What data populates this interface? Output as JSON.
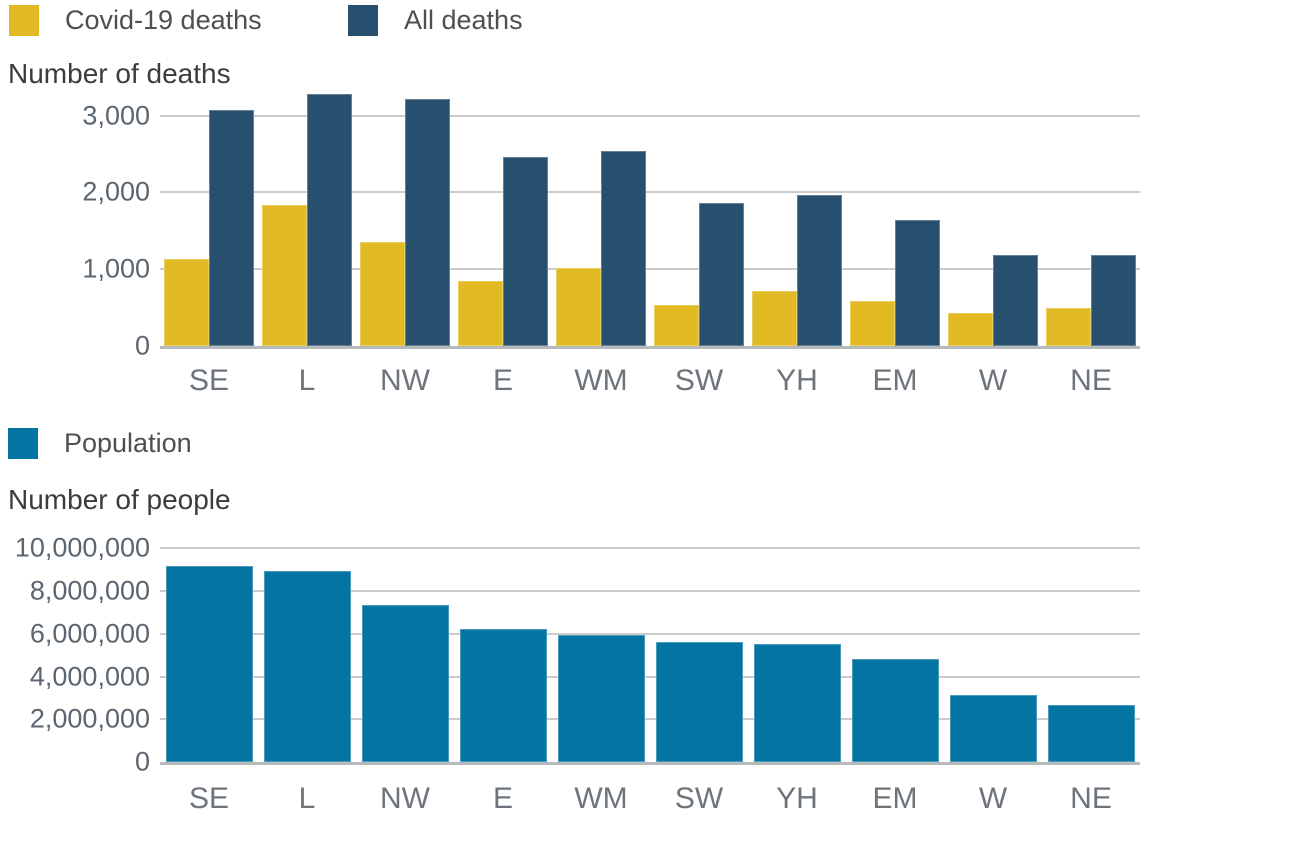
{
  "chart_data": [
    {
      "type": "bar",
      "title": "Number of deaths",
      "categories": [
        "SE",
        "L",
        "NW",
        "E",
        "WM",
        "SW",
        "YH",
        "EM",
        "W",
        "NE"
      ],
      "series": [
        {
          "name": "Covid-19 deaths",
          "color": "#E2BA24",
          "values": [
            1130,
            1830,
            1360,
            850,
            1020,
            530,
            710,
            580,
            430,
            500
          ]
        },
        {
          "name": "All deaths",
          "color": "#27506F",
          "values": [
            3070,
            3280,
            3210,
            2460,
            2540,
            1860,
            1960,
            1640,
            1190,
            1180
          ]
        }
      ],
      "yticks": [
        0,
        1000,
        2000,
        3000
      ],
      "ytick_labels": [
        "0",
        "1,000",
        "2,000",
        "3,000"
      ],
      "ylim": [
        0,
        3333
      ],
      "grid": true,
      "legend_position": "top"
    },
    {
      "type": "bar",
      "title": "Number of people",
      "categories": [
        "SE",
        "L",
        "NW",
        "E",
        "WM",
        "SW",
        "YH",
        "EM",
        "W",
        "NE"
      ],
      "series": [
        {
          "name": "Population",
          "color": "#0475A3",
          "values": [
            9180000,
            8960000,
            7340000,
            6240000,
            5950000,
            5620000,
            5500000,
            4840000,
            3150000,
            2670000
          ]
        }
      ],
      "yticks": [
        0,
        2000000,
        4000000,
        6000000,
        8000000,
        10000000
      ],
      "ytick_labels": [
        "0",
        "2,000,000",
        "4,000,000",
        "6,000,000",
        "8,000,000",
        "10,000,000"
      ],
      "ylim": [
        0,
        10390000
      ],
      "grid": true,
      "legend_position": "top"
    }
  ]
}
